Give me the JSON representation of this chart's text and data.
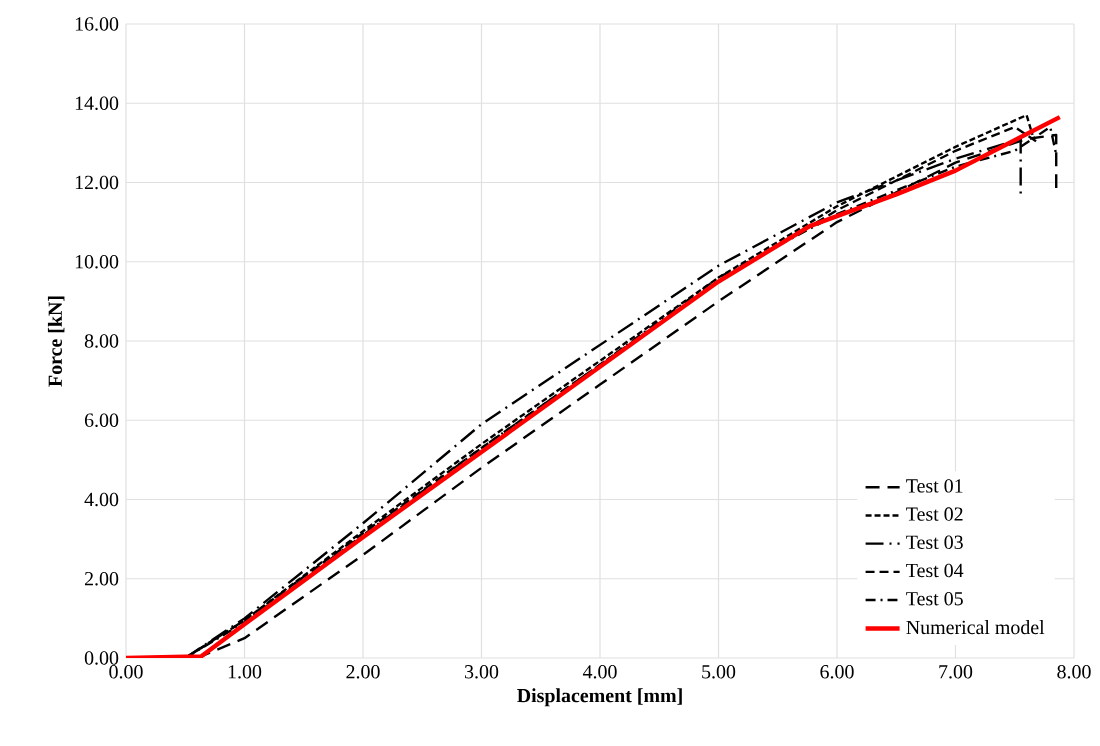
{
  "chart_data": {
    "type": "line",
    "xlabel": "Displacement [mm]",
    "ylabel": "Force [kN]",
    "xlim": [
      0,
      8
    ],
    "ylim": [
      0,
      16
    ],
    "xticks": [
      {
        "value": 0,
        "label": "0.00"
      },
      {
        "value": 1,
        "label": "1.00"
      },
      {
        "value": 2,
        "label": "2.00"
      },
      {
        "value": 3,
        "label": "3.00"
      },
      {
        "value": 4,
        "label": "4.00"
      },
      {
        "value": 5,
        "label": "5.00"
      },
      {
        "value": 6,
        "label": "6.00"
      },
      {
        "value": 7,
        "label": "7.00"
      },
      {
        "value": 8,
        "label": "8.00"
      }
    ],
    "yticks": [
      {
        "value": 0,
        "label": "0.00"
      },
      {
        "value": 2,
        "label": "2.00"
      },
      {
        "value": 4,
        "label": "4.00"
      },
      {
        "value": 6,
        "label": "6.00"
      },
      {
        "value": 8,
        "label": "8.00"
      },
      {
        "value": 10,
        "label": "10.00"
      },
      {
        "value": 12,
        "label": "12.00"
      },
      {
        "value": 14,
        "label": "14.00"
      },
      {
        "value": 16,
        "label": "16.00"
      }
    ],
    "grid": true,
    "legend": "bottom right",
    "marker": "none",
    "series": [
      {
        "name": "Test 01",
        "color": "#000000",
        "line_style": "long dashed",
        "x": [
          0.6,
          1,
          2,
          3,
          4,
          5,
          6,
          7,
          7.6,
          7.85,
          7.85
        ],
        "values": [
          0,
          0.5,
          2.6,
          4.8,
          6.9,
          9.0,
          11.0,
          12.5,
          13.1,
          13.2,
          11.8
        ]
      },
      {
        "name": "Test 02",
        "color": "#000000",
        "line_style": "dashed",
        "x": [
          0.5,
          1,
          2,
          3,
          4,
          5,
          6,
          7,
          7.6,
          7.65
        ],
        "values": [
          0,
          0.95,
          3.2,
          5.4,
          7.5,
          9.6,
          11.4,
          12.9,
          13.7,
          13.2
        ]
      },
      {
        "name": "Test 03",
        "color": "#000000",
        "line_style": "long dash dot",
        "x": [
          0.5,
          1,
          2,
          3,
          4,
          5,
          6,
          7,
          7.55,
          7.55
        ],
        "values": [
          0,
          1.0,
          3.4,
          5.9,
          7.9,
          9.9,
          11.5,
          12.6,
          13.1,
          11.6
        ]
      },
      {
        "name": "Test 04",
        "color": "#000000",
        "line_style": "medium dashed",
        "x": [
          0.5,
          1,
          2,
          3,
          4,
          5,
          6,
          7,
          7.5,
          7.7
        ],
        "values": [
          0,
          0.95,
          3.15,
          5.3,
          7.4,
          9.5,
          11.3,
          12.8,
          13.4,
          13.0
        ]
      },
      {
        "name": "Test 05",
        "color": "#000000",
        "line_style": "dash dot",
        "x": [
          0.5,
          1,
          2,
          3,
          4,
          5,
          6,
          7,
          7.5,
          7.8,
          7.85
        ],
        "values": [
          0,
          0.9,
          3.1,
          5.3,
          7.4,
          9.6,
          11.2,
          12.4,
          12.8,
          13.4,
          12.7
        ]
      },
      {
        "name": "Numerical model",
        "color": "#ff0000",
        "line_style": "solid",
        "x": [
          0,
          0.5,
          0.63,
          1,
          2,
          3,
          4,
          5,
          5.77,
          6.5,
          7,
          7.88
        ],
        "values": [
          0,
          0.03,
          0.03,
          0.85,
          3.05,
          5.2,
          7.35,
          9.5,
          10.9,
          11.7,
          12.3,
          13.65
        ]
      }
    ]
  }
}
